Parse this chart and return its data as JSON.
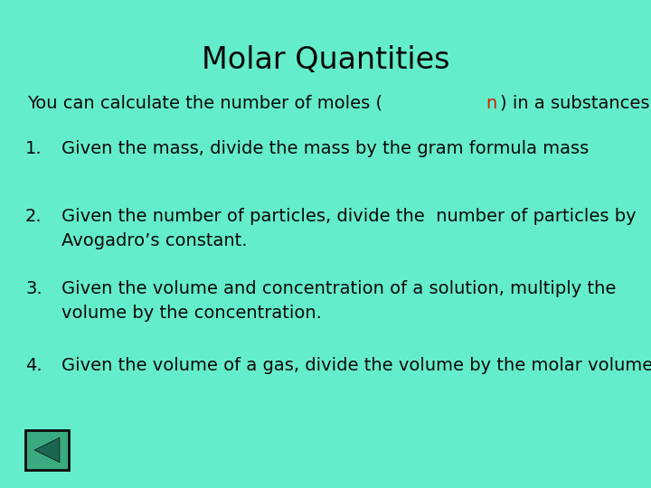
{
  "title": "Molar Quantities",
  "bg_color": "#64EDCA",
  "title_color": "#0a0a0a",
  "text_color": "#0a0a0a",
  "highlight_color": "#cc2200",
  "items": [
    {
      "num": "1.",
      "text": "Given the mass, divide the mass by the gram formula mass"
    },
    {
      "num": "2.",
      "text": "Given the number of particles, divide the  number of particles by\nAvogadro’s constant."
    },
    {
      "num": "3.",
      "text": "Given the volume and concentration of a solution, multiply the\nvolume by the concentration."
    },
    {
      "num": "4.",
      "text": "Given the volume of a gas, divide the volume by the molar volume."
    }
  ],
  "nav_box_facecolor": "#3aaa80",
  "nav_box_edgecolor": "#0a0a0a",
  "nav_arrow_color": "#1a6650",
  "font_family": "Comic Sans MS",
  "title_fontsize": 24,
  "body_fontsize": 14
}
